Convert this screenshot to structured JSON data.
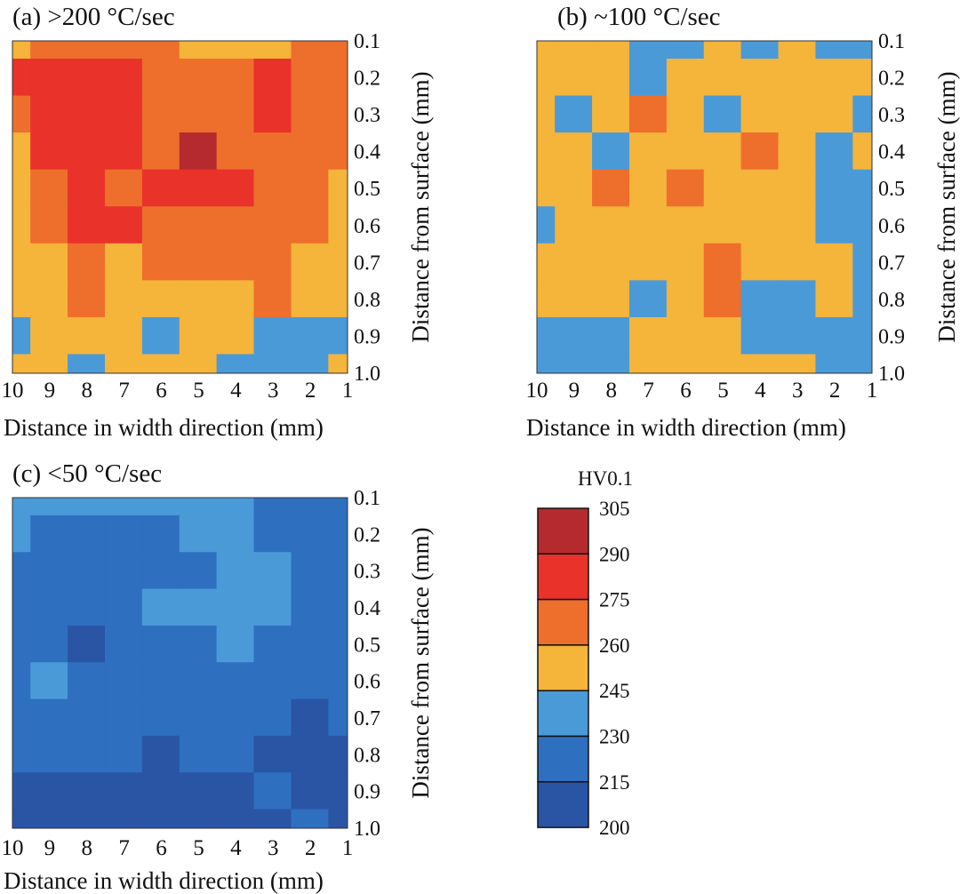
{
  "colorbar": {
    "title": "HV0.1",
    "ticks": [
      "305",
      "290",
      "275",
      "260",
      "245",
      "230",
      "215",
      "200"
    ],
    "bands": [
      {
        "from": 290,
        "to": 305,
        "color": "#b42a2e"
      },
      {
        "from": 275,
        "to": 290,
        "color": "#e8322a"
      },
      {
        "from": 260,
        "to": 275,
        "color": "#ee6e2c"
      },
      {
        "from": 245,
        "to": 260,
        "color": "#f5b43a"
      },
      {
        "from": 230,
        "to": 245,
        "color": "#4a9ad8"
      },
      {
        "from": 215,
        "to": 230,
        "color": "#2f6fc0"
      },
      {
        "from": 200,
        "to": 215,
        "color": "#2a55a5"
      }
    ]
  },
  "chart_data": [
    {
      "type": "heatmap",
      "title": "(a) >200 °C/sec",
      "xlabel": "Distance in width direction (mm)",
      "ylabel": "Distance from surface (mm)",
      "x_ticks": [
        "10",
        "9",
        "8",
        "7",
        "6",
        "5",
        "4",
        "3",
        "2",
        "1"
      ],
      "y_ticks": [
        "0.1",
        "0.2",
        "0.3",
        "0.4",
        "0.5",
        "0.6",
        "0.7",
        "0.8",
        "0.9",
        "1.0"
      ],
      "x_range": [
        10,
        1
      ],
      "y_range": [
        0.1,
        1.0
      ],
      "value_unit": "HV0.1",
      "x": [
        10,
        9,
        8,
        7,
        6,
        5,
        4,
        3,
        2,
        1
      ],
      "y": [
        0.1,
        0.2,
        0.3,
        0.4,
        0.5,
        0.6,
        0.7,
        0.8,
        0.9,
        1.0
      ],
      "z": [
        [
          250,
          262,
          265,
          268,
          262,
          258,
          255,
          257,
          262,
          265
        ],
        [
          277,
          280,
          282,
          275,
          268,
          266,
          270,
          278,
          268,
          265
        ],
        [
          265,
          277,
          280,
          282,
          268,
          272,
          268,
          280,
          266,
          264
        ],
        [
          256,
          278,
          278,
          276,
          270,
          292,
          268,
          266,
          265,
          264
        ],
        [
          255,
          266,
          277,
          272,
          275,
          283,
          278,
          266,
          264,
          255
        ],
        [
          252,
          262,
          276,
          280,
          266,
          268,
          266,
          265,
          262,
          253
        ],
        [
          250,
          255,
          266,
          256,
          266,
          266,
          265,
          262,
          258,
          253
        ],
        [
          250,
          252,
          262,
          250,
          252,
          252,
          256,
          263,
          252,
          250
        ],
        [
          244,
          250,
          250,
          252,
          240,
          250,
          246,
          243,
          240,
          238
        ],
        [
          248,
          248,
          242,
          250,
          246,
          252,
          240,
          236,
          236,
          248
        ]
      ]
    },
    {
      "type": "heatmap",
      "title": "(b) ~100 °C/sec",
      "xlabel": "Distance in width direction (mm)",
      "ylabel": "Distance from surface (mm)",
      "x_ticks": [
        "10",
        "9",
        "8",
        "7",
        "6",
        "5",
        "4",
        "3",
        "2",
        "1"
      ],
      "y_ticks": [
        "0.1",
        "0.2",
        "0.3",
        "0.4",
        "0.5",
        "0.6",
        "0.7",
        "0.8",
        "0.9",
        "1.0"
      ],
      "x_range": [
        10,
        1
      ],
      "y_range": [
        0.1,
        1.0
      ],
      "value_unit": "HV0.1",
      "x": [
        10,
        9,
        8,
        7,
        6,
        5,
        4,
        3,
        2,
        1
      ],
      "y": [
        0.1,
        0.2,
        0.3,
        0.4,
        0.5,
        0.6,
        0.7,
        0.8,
        0.9,
        1.0
      ],
      "z": [
        [
          248,
          252,
          250,
          244,
          238,
          250,
          240,
          248,
          238,
          236
        ],
        [
          250,
          250,
          248,
          238,
          250,
          252,
          250,
          250,
          246,
          250
        ],
        [
          250,
          238,
          250,
          262,
          250,
          236,
          250,
          250,
          250,
          238
        ],
        [
          252,
          250,
          238,
          250,
          250,
          250,
          262,
          250,
          238,
          246
        ],
        [
          250,
          250,
          262,
          250,
          262,
          250,
          250,
          250,
          240,
          238
        ],
        [
          238,
          250,
          250,
          250,
          250,
          250,
          250,
          250,
          238,
          238
        ],
        [
          250,
          250,
          250,
          250,
          250,
          260,
          250,
          250,
          250,
          238
        ],
        [
          250,
          250,
          250,
          238,
          252,
          262,
          238,
          238,
          250,
          238
        ],
        [
          238,
          240,
          240,
          250,
          250,
          250,
          238,
          236,
          238,
          238
        ],
        [
          236,
          238,
          238,
          250,
          250,
          248,
          246,
          250,
          238,
          238
        ]
      ]
    },
    {
      "type": "heatmap",
      "title": "(c) <50 °C/sec",
      "xlabel": "Distance in width direction (mm)",
      "ylabel": "Distance from surface (mm)",
      "x_ticks": [
        "10",
        "9",
        "8",
        "7",
        "6",
        "5",
        "4",
        "3",
        "2",
        "1"
      ],
      "y_ticks": [
        "0.1",
        "0.2",
        "0.3",
        "0.4",
        "0.5",
        "0.6",
        "0.7",
        "0.8",
        "0.9",
        "1.0"
      ],
      "x_range": [
        10,
        1
      ],
      "y_range": [
        0.1,
        1.0
      ],
      "value_unit": "HV0.1",
      "x": [
        10,
        9,
        8,
        7,
        6,
        5,
        4,
        3,
        2,
        1
      ],
      "y": [
        0.1,
        0.2,
        0.3,
        0.4,
        0.5,
        0.6,
        0.7,
        0.8,
        0.9,
        1.0
      ],
      "z": [
        [
          232,
          234,
          236,
          234,
          238,
          232,
          234,
          222,
          224,
          224
        ],
        [
          232,
          222,
          226,
          224,
          226,
          234,
          236,
          222,
          222,
          222
        ],
        [
          222,
          222,
          224,
          222,
          224,
          222,
          234,
          234,
          222,
          222
        ],
        [
          222,
          222,
          222,
          222,
          234,
          232,
          236,
          234,
          222,
          224
        ],
        [
          222,
          222,
          212,
          222,
          222,
          222,
          232,
          226,
          222,
          222
        ],
        [
          224,
          234,
          222,
          222,
          222,
          222,
          222,
          222,
          222,
          220
        ],
        [
          222,
          222,
          222,
          222,
          222,
          222,
          220,
          222,
          212,
          222
        ],
        [
          220,
          220,
          220,
          218,
          212,
          222,
          220,
          214,
          212,
          212
        ],
        [
          212,
          212,
          214,
          212,
          212,
          212,
          212,
          220,
          212,
          212
        ],
        [
          212,
          212,
          212,
          212,
          212,
          212,
          212,
          212,
          222,
          212
        ]
      ]
    }
  ]
}
